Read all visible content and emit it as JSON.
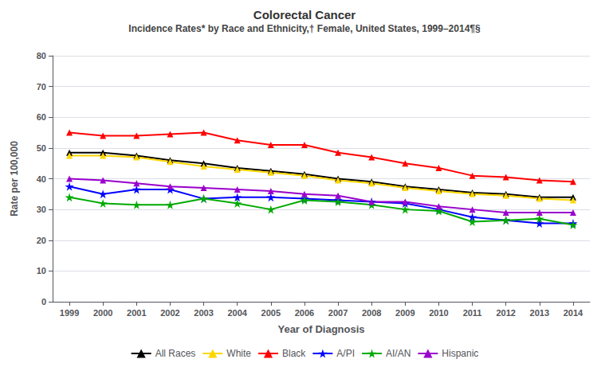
{
  "chart_data": {
    "type": "line",
    "title": "Colorectal Cancer",
    "subtitle": "Incidence Rates* by Race and Ethnicity,† Female, United States, 1999–2014¶§",
    "xlabel": "Year of Diagnosis",
    "ylabel": "Rate per 100,000",
    "x": [
      1999,
      2000,
      2001,
      2002,
      2003,
      2004,
      2005,
      2006,
      2007,
      2008,
      2009,
      2010,
      2011,
      2012,
      2013,
      2014
    ],
    "xlim": [
      1998.5,
      2014.5
    ],
    "xticks": [
      1999,
      2000,
      2001,
      2002,
      2003,
      2004,
      2005,
      2006,
      2007,
      2008,
      2009,
      2010,
      2011,
      2012,
      2013,
      2014
    ],
    "ylim": [
      0,
      80
    ],
    "yticks": [
      0,
      10,
      20,
      30,
      40,
      50,
      60,
      70,
      80
    ],
    "grid": true,
    "legend": "bottom",
    "series": [
      {
        "name": "All Races",
        "color": "#000000",
        "marker": "triangle",
        "values": [
          48.5,
          48.5,
          47.5,
          46.0,
          45.0,
          43.5,
          42.5,
          41.5,
          40.0,
          39.0,
          37.5,
          36.5,
          35.5,
          35.0,
          34.0,
          34.0
        ]
      },
      {
        "name": "White",
        "color": "#FFD700",
        "marker": "triangle",
        "values": [
          47.5,
          47.5,
          47.0,
          45.5,
          44.0,
          43.0,
          42.0,
          41.0,
          39.5,
          38.5,
          37.0,
          36.0,
          35.0,
          34.5,
          33.5,
          33.0
        ]
      },
      {
        "name": "Black",
        "color": "#FF0000",
        "marker": "triangle",
        "values": [
          55.0,
          54.0,
          54.0,
          54.5,
          55.0,
          52.5,
          51.0,
          51.0,
          48.5,
          47.0,
          45.0,
          43.5,
          41.0,
          40.5,
          39.5,
          39.0
        ]
      },
      {
        "name": "A/PI",
        "color": "#0000FF",
        "marker": "star",
        "values": [
          37.5,
          35.0,
          36.5,
          36.5,
          33.5,
          34.0,
          34.0,
          33.5,
          33.0,
          32.5,
          32.0,
          30.0,
          27.5,
          26.5,
          25.5,
          25.5
        ]
      },
      {
        "name": "AI/AN",
        "color": "#00AA00",
        "marker": "star",
        "values": [
          34.0,
          32.0,
          31.5,
          31.5,
          33.5,
          32.0,
          30.0,
          33.0,
          32.5,
          31.5,
          30.0,
          29.5,
          26.0,
          26.5,
          27.0,
          25.0
        ]
      },
      {
        "name": "Hispanic",
        "color": "#9900CC",
        "marker": "triangle",
        "values": [
          40.0,
          39.5,
          38.5,
          37.5,
          37.0,
          36.5,
          36.0,
          35.0,
          34.5,
          32.5,
          32.5,
          31.0,
          30.0,
          29.0,
          29.0,
          29.0
        ]
      }
    ]
  }
}
